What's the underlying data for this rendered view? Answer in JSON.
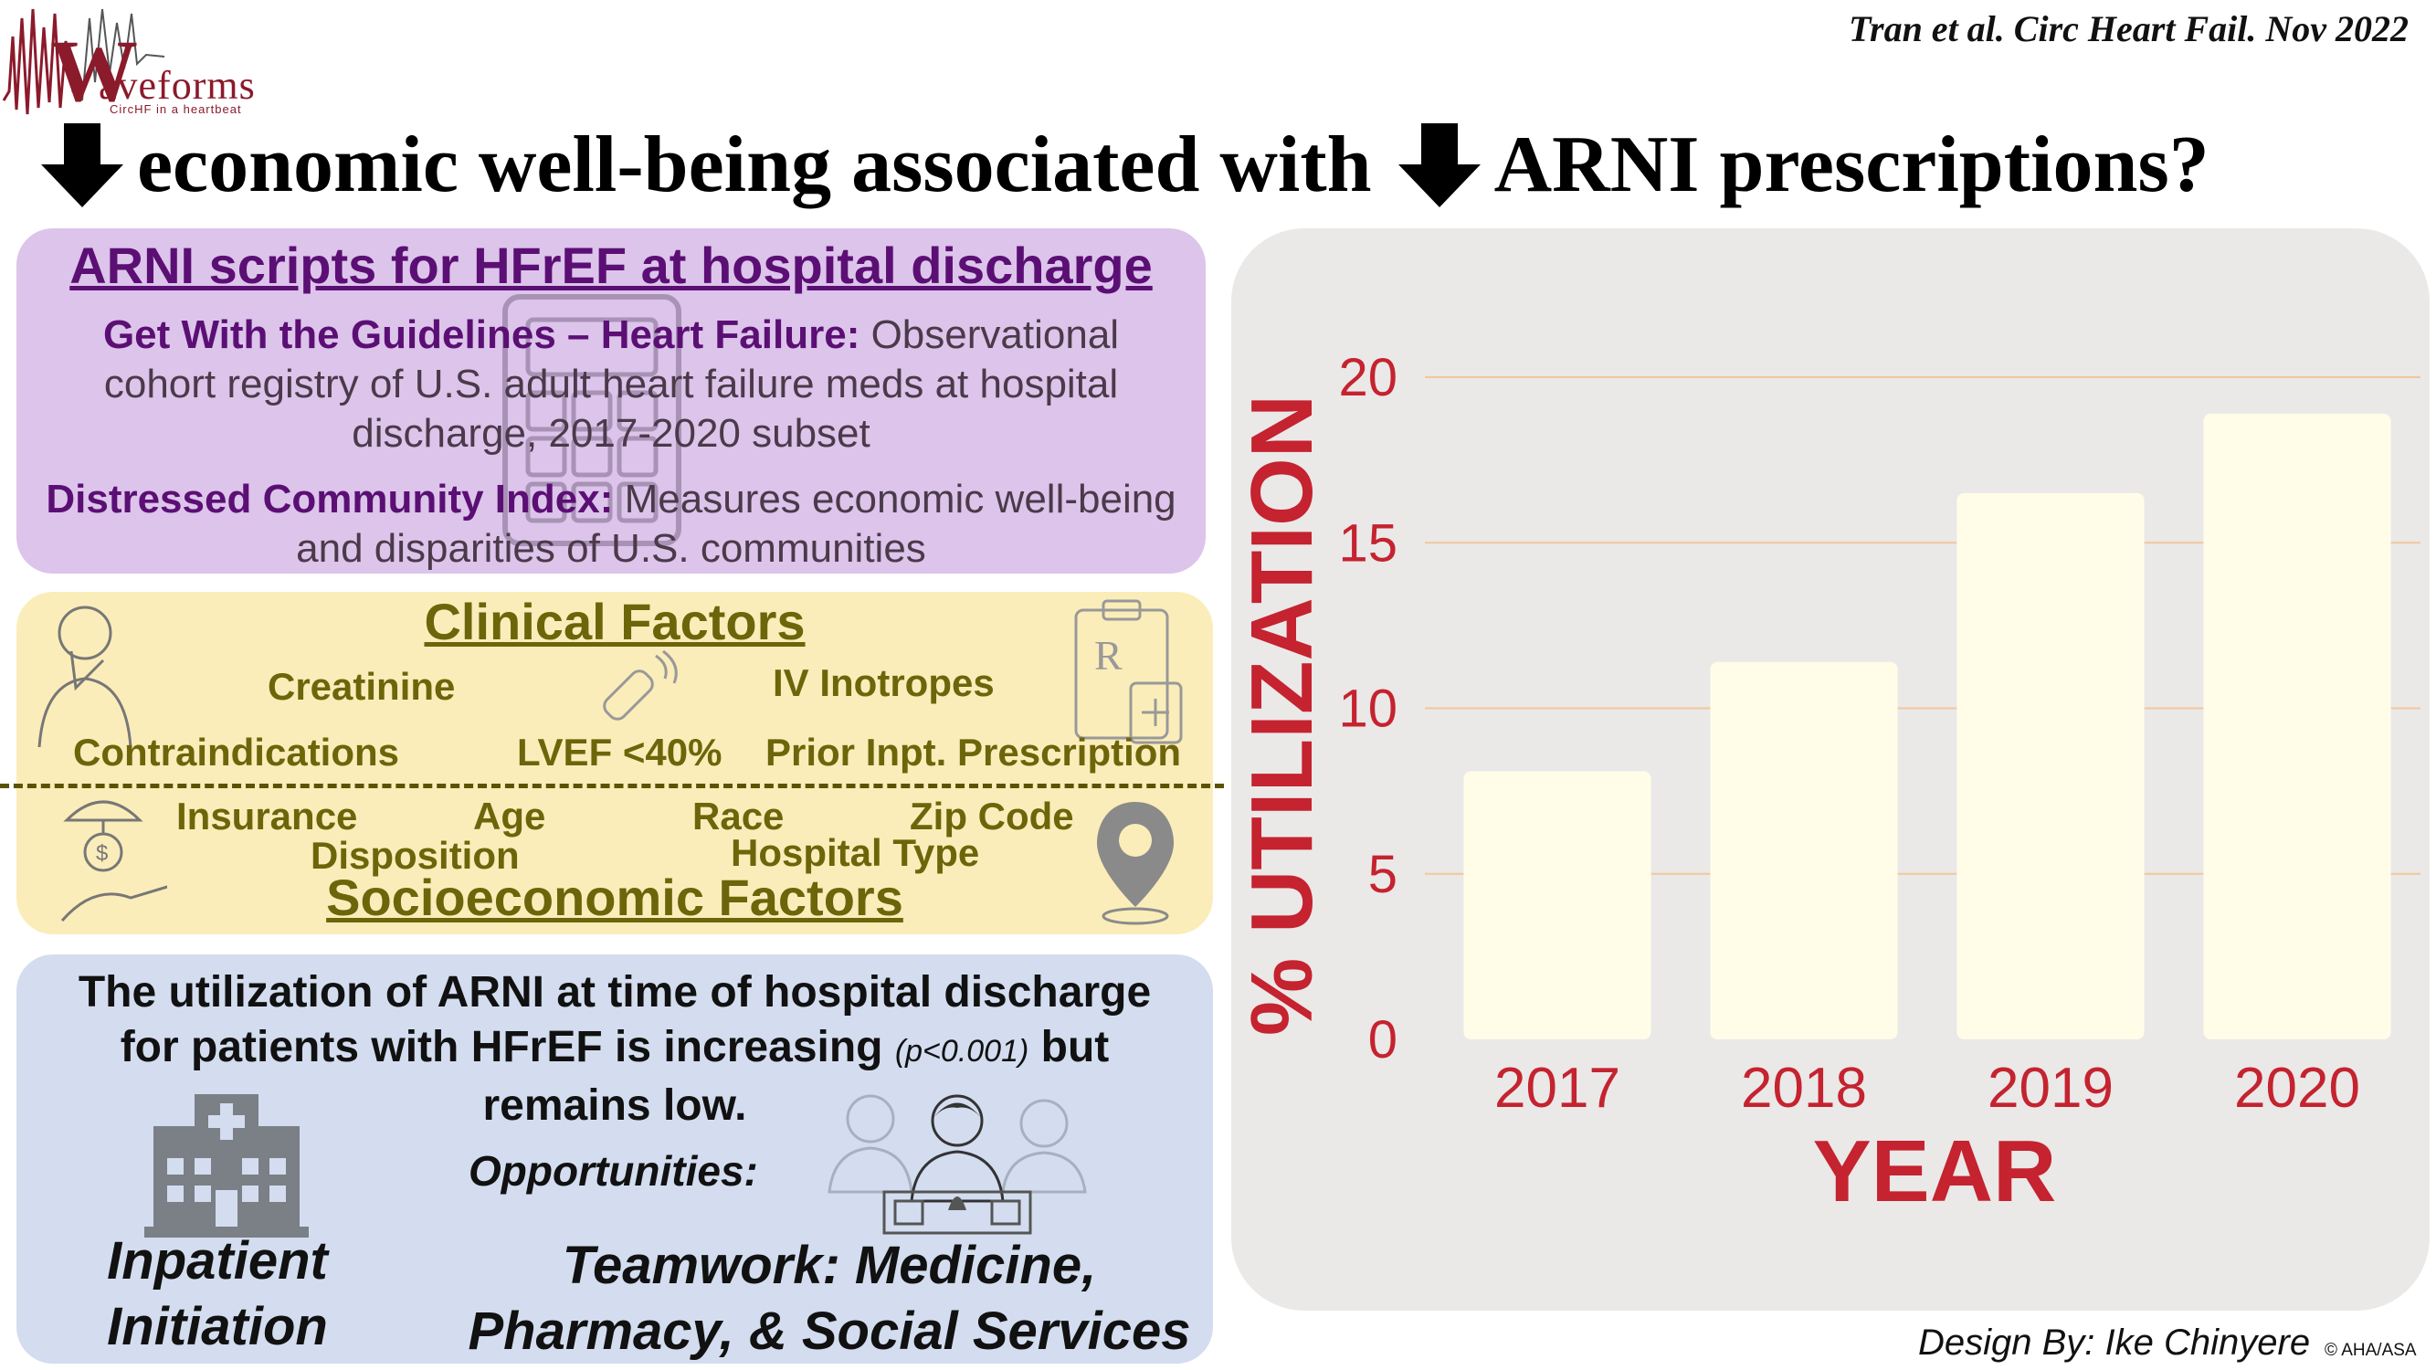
{
  "logo": {
    "word": "aveforms",
    "initial": "W",
    "tagline": "CircHF in a heartbeat"
  },
  "citation": "Tran et al. Circ Heart Fail. Nov 2022",
  "headline": {
    "part1": "economic well-being associated with",
    "part2": "ARNI prescriptions?"
  },
  "study": {
    "title": "ARNI scripts for HFrEF at hospital discharge",
    "gwtg_label": "Get With the Guidelines – Heart Failure:",
    "gwtg_text": " Observational cohort registry of U.S. adult heart failure meds at hospital discharge, 2017-2020 subset",
    "dci_label": "Distressed Community Index:",
    "dci_text": " Measures economic well-being and disparities of U.S. communities"
  },
  "factors": {
    "clinical_title": "Clinical Factors",
    "clinical": [
      "Creatinine",
      "IV Inotropes",
      "Contraindications",
      "LVEF <40%",
      "Prior Inpt. Prescription"
    ],
    "socio_title": "Socioeconomic Factors",
    "socio": [
      "Insurance",
      "Age",
      "Race",
      "Zip Code",
      "Disposition",
      "Hospital Type"
    ]
  },
  "conclusion": {
    "text_a": "The utilization of ARNI at time of hospital discharge for patients with HFrEF is increasing ",
    "p_value": "(p<0.001)",
    "text_b": " but remains low.",
    "opportunities": "Opportunities:",
    "inpatient": "Inpatient Initiation",
    "teamwork": "Teamwork: Medicine, Pharmacy, & Social Services"
  },
  "chart_data": {
    "type": "bar",
    "categories": [
      "2017",
      "2018",
      "2019",
      "2020"
    ],
    "values": [
      8.1,
      11.4,
      16.5,
      18.9
    ],
    "xlabel": "YEAR",
    "ylabel": "% UTILIZATION",
    "ylim": [
      0,
      20
    ],
    "yticks": [
      0,
      5,
      10,
      15,
      20
    ],
    "grid": true,
    "colors": {
      "bar": "#fffde8",
      "axis_text": "#c4232f",
      "grid": "#f0c89a"
    }
  },
  "credit": "Design By: Ike Chinyere",
  "copyright": "© AHA/ASA",
  "icons": [
    "down-arrow-icon",
    "calculator-icon",
    "pain-patient-icon",
    "thermometer-icon",
    "prescription-icon",
    "insurance-hand-icon",
    "location-pin-icon",
    "hospital-icon",
    "care-team-icon"
  ]
}
